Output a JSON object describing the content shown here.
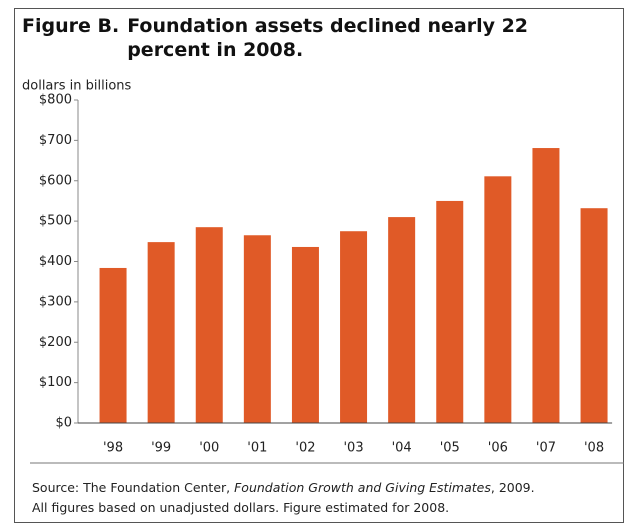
{
  "chart_data": {
    "type": "bar",
    "figure_label": "Figure B.",
    "title": "Foundation assets declined nearly 22 percent in 2008.",
    "y_axis_label": "dollars in billions",
    "categories": [
      "'98",
      "'99",
      "'00",
      "'01",
      "'02",
      "'03",
      "'04",
      "'05",
      "'06",
      "'07",
      "'08"
    ],
    "values": [
      384,
      448,
      485,
      465,
      436,
      475,
      510,
      550,
      611,
      681,
      532
    ],
    "color": "#e05a27",
    "ylim": [
      0,
      800
    ],
    "yticks": [
      {
        "value": 0,
        "label": "$0"
      },
      {
        "value": 100,
        "label": "$100"
      },
      {
        "value": 200,
        "label": "$200"
      },
      {
        "value": 300,
        "label": "$300"
      },
      {
        "value": 400,
        "label": "$400"
      },
      {
        "value": 500,
        "label": "$500"
      },
      {
        "value": 600,
        "label": "$600"
      },
      {
        "value": 700,
        "label": "$700"
      },
      {
        "value": 800,
        "label": "$800"
      }
    ],
    "grid": false,
    "source": {
      "prefix": "Source: The Foundation Center, ",
      "italic": "Foundation Growth and Giving Estimates",
      "suffix": ", 2009."
    },
    "note": "All figures based on unadjusted dollars. Figure estimated for 2008."
  }
}
